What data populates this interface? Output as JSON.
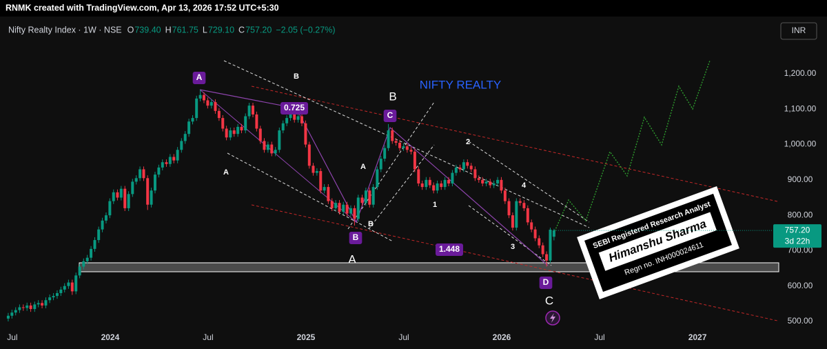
{
  "header": "RNMK created with TradingView.com, Apr 13, 2026 17:52 UTC+5:30",
  "currency": "INR",
  "legend": {
    "symbol": "Nifty Realty Index · 1W · NSE",
    "items": [
      {
        "key": "O",
        "value": "739.40"
      },
      {
        "key": "H",
        "value": "761.75"
      },
      {
        "key": "L",
        "value": "729.10"
      },
      {
        "key": "C",
        "value": "757.20"
      }
    ],
    "change": "−2.05 (−0.27%)"
  },
  "stamp": {
    "line1": "SEBI Registered Research Analyst",
    "line2": "Himanshu Sharma",
    "line3": "Regn no. INH000024611"
  },
  "chart_data": {
    "type": "candlestick",
    "up_color": "#089981",
    "down_color": "#f23645",
    "grid": false,
    "xlim": [
      2023.437,
      2027.38
    ],
    "xticks": [
      {
        "value": 2023.5,
        "label": "Jul"
      },
      {
        "value": 2024,
        "label": "2024"
      },
      {
        "value": 2024.5,
        "label": "Jul"
      },
      {
        "value": 2025,
        "label": "2025"
      },
      {
        "value": 2025.5,
        "label": "Jul"
      },
      {
        "value": 2026,
        "label": "2026"
      },
      {
        "value": 2026.5,
        "label": "Jul"
      },
      {
        "value": 2027,
        "label": "2027"
      }
    ],
    "ylim": [
      472.7,
      1361.8
    ],
    "yticks": [
      {
        "value": 500,
        "label": "500.00"
      },
      {
        "value": 600,
        "label": "600.00"
      },
      {
        "value": 700,
        "label": "700.00"
      },
      {
        "value": 800,
        "label": "800.00"
      },
      {
        "value": 900,
        "label": "900.00"
      },
      {
        "value": 1000,
        "label": "1,000.00"
      },
      {
        "value": 1100,
        "label": "1,100.00"
      },
      {
        "value": 1200,
        "label": "1,200.00"
      }
    ],
    "last_price": {
      "value": 757.2,
      "label": "757.20"
    },
    "countdown": "3d 22h",
    "annotations": [
      "A",
      "B",
      "0.725",
      "B",
      "NIFTY REALTY",
      "C",
      "A",
      "A",
      "B",
      "B",
      "2",
      "4",
      "1",
      "3",
      "1.448",
      "A",
      "D",
      "C"
    ],
    "x": [
      2023.479,
      2023.498,
      2023.517,
      2023.537,
      2023.556,
      2023.575,
      2023.594,
      2023.614,
      2023.633,
      2023.652,
      2023.671,
      2023.691,
      2023.71,
      2023.729,
      2023.748,
      2023.767,
      2023.787,
      2023.806,
      2023.825,
      2023.844,
      2023.864,
      2023.883,
      2023.902,
      2023.921,
      2023.941,
      2023.96,
      2023.979,
      2023.998,
      2024.017,
      2024.037,
      2024.056,
      2024.075,
      2024.094,
      2024.114,
      2024.133,
      2024.152,
      2024.171,
      2024.191,
      2024.21,
      2024.229,
      2024.248,
      2024.267,
      2024.287,
      2024.306,
      2024.325,
      2024.344,
      2024.364,
      2024.383,
      2024.402,
      2024.421,
      2024.441,
      2024.46,
      2024.479,
      2024.498,
      2024.517,
      2024.537,
      2024.556,
      2024.575,
      2024.594,
      2024.614,
      2024.633,
      2024.652,
      2024.671,
      2024.691,
      2024.71,
      2024.729,
      2024.748,
      2024.767,
      2024.787,
      2024.806,
      2024.825,
      2024.844,
      2024.864,
      2024.883,
      2024.902,
      2024.921,
      2024.941,
      2024.96,
      2024.979,
      2024.998,
      2025.017,
      2025.037,
      2025.056,
      2025.075,
      2025.094,
      2025.114,
      2025.133,
      2025.152,
      2025.171,
      2025.191,
      2025.21,
      2025.229,
      2025.248,
      2025.267,
      2025.287,
      2025.306,
      2025.325,
      2025.344,
      2025.364,
      2025.383,
      2025.402,
      2025.421,
      2025.441,
      2025.46,
      2025.479,
      2025.498,
      2025.517,
      2025.537,
      2025.556,
      2025.575,
      2025.594,
      2025.614,
      2025.633,
      2025.652,
      2025.671,
      2025.691,
      2025.71,
      2025.729,
      2025.748,
      2025.767,
      2025.787,
      2025.806,
      2025.825,
      2025.844,
      2025.864,
      2025.883,
      2025.902,
      2025.921,
      2025.941,
      2025.96,
      2025.979,
      2025.998,
      2026.017,
      2026.037,
      2026.056,
      2026.075,
      2026.094,
      2026.114,
      2026.133,
      2026.152,
      2026.171,
      2026.191,
      2026.21,
      2026.229,
      2026.248,
      2026.267
    ],
    "open": [
      508,
      516,
      525,
      532,
      540,
      538,
      545,
      535,
      548,
      552,
      545,
      560,
      568,
      572,
      580,
      590,
      600,
      610,
      585,
      630,
      655,
      670,
      680,
      705,
      730,
      760,
      785,
      800,
      840,
      865,
      850,
      875,
      820,
      860,
      895,
      905,
      930,
      905,
      830,
      870,
      915,
      935,
      950,
      945,
      965,
      955,
      985,
      1010,
      1030,
      1065,
      1075,
      1130,
      1140,
      1125,
      1110,
      1120,
      1095,
      1075,
      1045,
      1020,
      1040,
      1030,
      1050,
      1040,
      1080,
      1110,
      1085,
      1045,
      1010,
      985,
      1000,
      975,
      985,
      1040,
      1060,
      1075,
      1085,
      1070,
      1080,
      1060,
      1000,
      940,
      920,
      925,
      870,
      880,
      840,
      820,
      835,
      810,
      830,
      805,
      820,
      790,
      850,
      835,
      870,
      830,
      880,
      930,
      960,
      990,
      1040,
      1010,
      1005,
      990,
      995,
      985,
      980,
      930,
      890,
      880,
      900,
      885,
      870,
      890,
      880,
      900,
      890,
      920,
      935,
      930,
      950,
      940,
      930,
      905,
      900,
      890,
      895,
      885,
      890,
      900,
      870,
      840,
      800,
      765,
      840,
      835,
      820,
      780,
      760,
      735,
      715,
      690,
      672,
      739.4
    ],
    "high": [
      524,
      533,
      540,
      548,
      548,
      553,
      553,
      556,
      560,
      560,
      568,
      576,
      580,
      588,
      598,
      608,
      618,
      618,
      638,
      663,
      678,
      688,
      713,
      738,
      768,
      793,
      808,
      848,
      873,
      873,
      883,
      883,
      868,
      903,
      913,
      938,
      938,
      913,
      878,
      923,
      943,
      958,
      958,
      973,
      973,
      993,
      1018,
      1038,
      1073,
      1083,
      1138,
      1155,
      1148,
      1133,
      1128,
      1128,
      1103,
      1083,
      1053,
      1048,
      1048,
      1058,
      1058,
      1088,
      1118,
      1118,
      1093,
      1053,
      1018,
      1008,
      1008,
      993,
      1048,
      1068,
      1083,
      1093,
      1093,
      1088,
      1088,
      1068,
      1008,
      948,
      933,
      933,
      888,
      888,
      848,
      843,
      843,
      838,
      838,
      828,
      828,
      858,
      858,
      878,
      878,
      888,
      938,
      968,
      998,
      1058,
      1048,
      1018,
      1013,
      1003,
      1003,
      993,
      988,
      938,
      898,
      908,
      908,
      893,
      898,
      898,
      908,
      908,
      928,
      943,
      943,
      958,
      958,
      948,
      938,
      913,
      908,
      903,
      903,
      898,
      908,
      908,
      878,
      848,
      808,
      848,
      848,
      843,
      828,
      788,
      768,
      743,
      723,
      698,
      765,
      761.75
    ],
    "low": [
      500,
      508,
      517,
      524,
      530,
      530,
      527,
      527,
      540,
      537,
      537,
      552,
      560,
      564,
      572,
      582,
      592,
      575,
      577,
      622,
      647,
      662,
      672,
      697,
      722,
      752,
      777,
      792,
      832,
      842,
      842,
      812,
      812,
      852,
      887,
      897,
      897,
      815,
      822,
      862,
      907,
      927,
      937,
      937,
      947,
      947,
      977,
      1002,
      1022,
      1057,
      1067,
      1122,
      1117,
      1102,
      1102,
      1087,
      1067,
      1037,
      1012,
      1012,
      1022,
      1022,
      1032,
      1032,
      1072,
      1077,
      1037,
      1002,
      977,
      977,
      967,
      967,
      977,
      1032,
      1052,
      1067,
      1062,
      1062,
      1052,
      992,
      932,
      912,
      912,
      862,
      862,
      832,
      812,
      812,
      802,
      802,
      797,
      797,
      771,
      782,
      827,
      827,
      822,
      822,
      872,
      922,
      952,
      982,
      1002,
      997,
      982,
      982,
      977,
      972,
      922,
      882,
      872,
      872,
      877,
      862,
      862,
      872,
      872,
      882,
      882,
      912,
      922,
      922,
      932,
      922,
      897,
      892,
      882,
      882,
      877,
      877,
      882,
      862,
      832,
      792,
      757,
      757,
      827,
      812,
      772,
      752,
      727,
      707,
      682,
      655,
      665,
      729.1
    ],
    "close": [
      516,
      525,
      532,
      540,
      538,
      545,
      535,
      548,
      552,
      545,
      560,
      568,
      572,
      580,
      590,
      600,
      610,
      585,
      630,
      655,
      670,
      680,
      705,
      730,
      760,
      785,
      800,
      840,
      865,
      850,
      875,
      820,
      860,
      895,
      905,
      930,
      905,
      830,
      870,
      915,
      935,
      950,
      945,
      965,
      955,
      985,
      1010,
      1030,
      1065,
      1075,
      1130,
      1140,
      1125,
      1110,
      1120,
      1095,
      1075,
      1045,
      1020,
      1040,
      1030,
      1050,
      1040,
      1080,
      1110,
      1085,
      1045,
      1010,
      985,
      1000,
      975,
      985,
      1040,
      1060,
      1075,
      1085,
      1070,
      1080,
      1060,
      1000,
      940,
      920,
      925,
      870,
      880,
      840,
      820,
      835,
      810,
      830,
      805,
      820,
      790,
      850,
      835,
      870,
      830,
      880,
      930,
      960,
      990,
      1040,
      1010,
      1005,
      990,
      995,
      985,
      980,
      930,
      890,
      880,
      900,
      885,
      870,
      890,
      880,
      900,
      890,
      920,
      935,
      930,
      950,
      940,
      930,
      905,
      900,
      890,
      895,
      885,
      890,
      900,
      870,
      840,
      800,
      765,
      840,
      835,
      820,
      780,
      760,
      735,
      715,
      690,
      672,
      759.25,
      757.2
    ]
  }
}
